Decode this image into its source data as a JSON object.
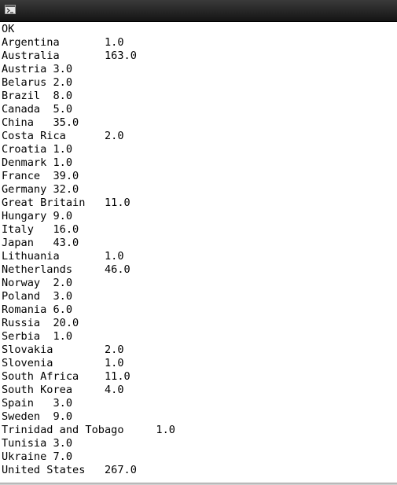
{
  "window": {
    "icon": "terminal-icon"
  },
  "output": {
    "lines": [
      "OK",
      "Argentina\t1.0",
      "Australia\t163.0",
      "Austria 3.0",
      "Belarus 2.0",
      "Brazil\t8.0",
      "Canada\t5.0",
      "China\t35.0",
      "Costa Rica\t2.0",
      "Croatia 1.0",
      "Denmark 1.0",
      "France\t39.0",
      "Germany 32.0",
      "Great Britain\t11.0",
      "Hungary 9.0",
      "Italy\t16.0",
      "Japan\t43.0",
      "Lithuania\t1.0",
      "Netherlands\t46.0",
      "Norway\t2.0",
      "Poland\t3.0",
      "Romania 6.0",
      "Russia\t20.0",
      "Serbia\t1.0",
      "Slovakia\t2.0",
      "Slovenia\t1.0",
      "South Africa\t11.0",
      "South Korea\t4.0",
      "Spain\t3.0",
      "Sweden\t9.0",
      "Trinidad and Tobago\t1.0",
      "Tunisia 3.0",
      "Ukraine 7.0",
      "United States\t267.0"
    ]
  }
}
